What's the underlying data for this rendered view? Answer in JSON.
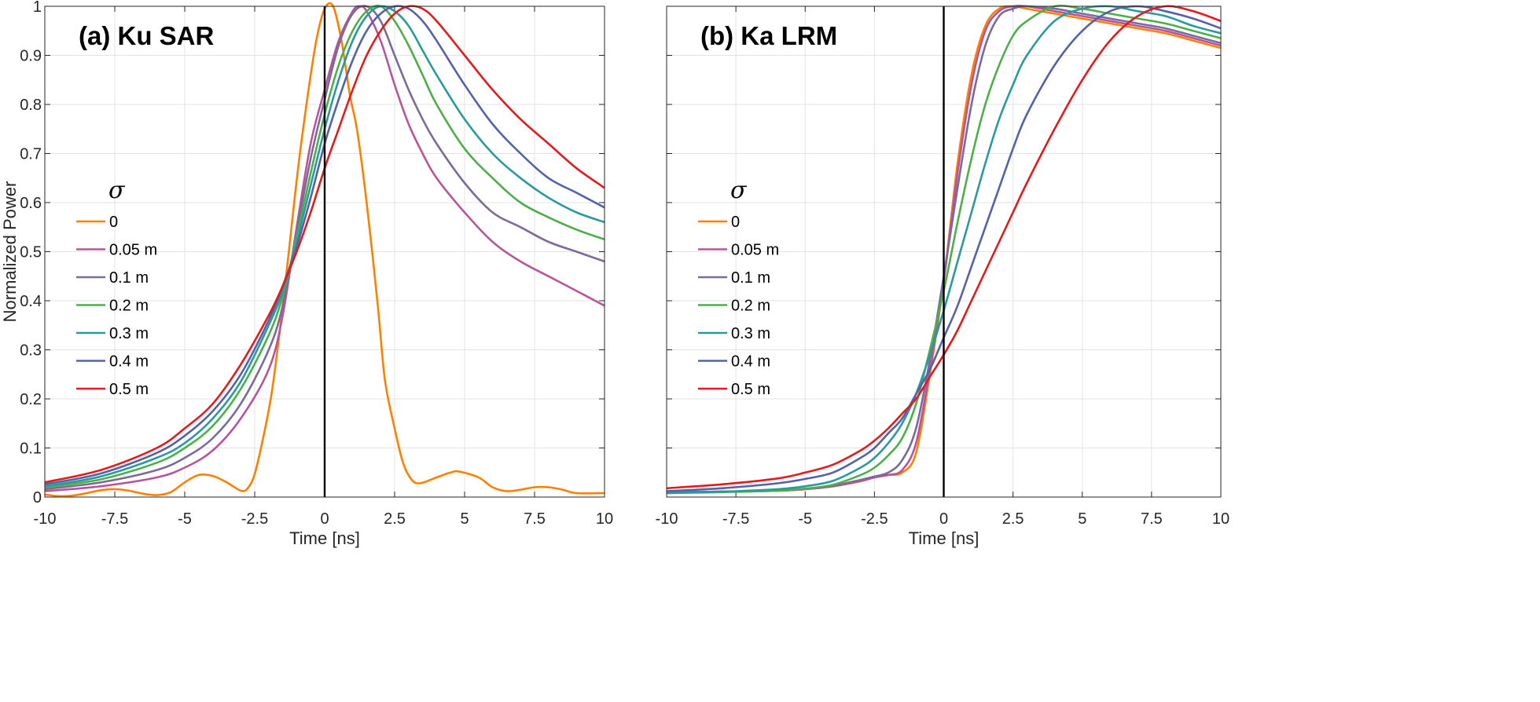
{
  "chart_data": [
    {
      "type": "line",
      "title": "(a) Ku SAR",
      "xlabel": "Time [ns]",
      "ylabel": "Normalized Power",
      "xlim": [
        -10,
        10
      ],
      "ylim": [
        0,
        1
      ],
      "xticks": [
        "-10",
        "-7.5",
        "-5",
        "-2.5",
        "0",
        "2.5",
        "5",
        "7.5",
        "10"
      ],
      "yticks": [
        "0",
        "0.1",
        "0.2",
        "0.3",
        "0.4",
        "0.5",
        "0.6",
        "0.7",
        "0.8",
        "0.9",
        "1"
      ],
      "show_ytick_labels": true,
      "grid": true,
      "vertical_line_at": 0,
      "legend_title": "σ",
      "legend_placement": "left",
      "series": [
        {
          "name": "0",
          "color": "#FF8000",
          "x": [
            -10,
            -9.5,
            -9,
            -8.5,
            -8,
            -7.5,
            -7,
            -6.5,
            -6,
            -5.5,
            -5,
            -4.5,
            -4,
            -3.5,
            -3,
            -2.75,
            -2.5,
            -2.2,
            -1.9,
            -1.6,
            -1.3,
            -0.95,
            -0.6,
            -0.3,
            0,
            0.3,
            0.6,
            0.9,
            1.18,
            1.54,
            1.9,
            2.15,
            2.5,
            2.8,
            3.1,
            3.4,
            4,
            4.5,
            4.8,
            5.5,
            6,
            6.5,
            7,
            7.5,
            8,
            8.5,
            9,
            10
          ],
          "y": [
            0.005,
            0.002,
            0.003,
            0.008,
            0.014,
            0.016,
            0.013,
            0.007,
            0.004,
            0.01,
            0.03,
            0.045,
            0.043,
            0.03,
            0.013,
            0.018,
            0.047,
            0.12,
            0.21,
            0.34,
            0.49,
            0.67,
            0.82,
            0.93,
            0.995,
            1.0,
            0.93,
            0.82,
            0.74,
            0.58,
            0.39,
            0.24,
            0.14,
            0.07,
            0.036,
            0.028,
            0.04,
            0.05,
            0.052,
            0.04,
            0.02,
            0.012,
            0.015,
            0.02,
            0.02,
            0.015,
            0.008,
            0.008
          ]
        },
        {
          "name": "0.05 m",
          "color": "#B8559A",
          "x": [
            -10,
            -8,
            -6,
            -5,
            -4,
            -3,
            -2,
            -1.5,
            -1,
            -0.5,
            0,
            0.5,
            1,
            1.25,
            1.5,
            2,
            2.5,
            3,
            3.5,
            4,
            5,
            6,
            7,
            8,
            9,
            10
          ],
          "y": [
            0.012,
            0.022,
            0.04,
            0.06,
            0.095,
            0.16,
            0.26,
            0.37,
            0.55,
            0.72,
            0.83,
            0.93,
            0.99,
            1.0,
            0.99,
            0.93,
            0.84,
            0.76,
            0.7,
            0.65,
            0.58,
            0.52,
            0.48,
            0.45,
            0.42,
            0.39
          ]
        },
        {
          "name": "0.1 m",
          "color": "#7B6A9A",
          "x": [
            -10,
            -8,
            -6,
            -5,
            -4,
            -3,
            -2,
            -1.5,
            -1,
            -0.5,
            0,
            0.5,
            1,
            1.5,
            2,
            2.5,
            3,
            3.5,
            4,
            5,
            6,
            7,
            8,
            9,
            10
          ],
          "y": [
            0.016,
            0.03,
            0.055,
            0.08,
            0.12,
            0.19,
            0.3,
            0.39,
            0.54,
            0.69,
            0.81,
            0.92,
            0.985,
            1.0,
            0.97,
            0.9,
            0.83,
            0.77,
            0.72,
            0.64,
            0.58,
            0.55,
            0.52,
            0.5,
            0.48
          ]
        },
        {
          "name": "0.2 m",
          "color": "#4DAF4A",
          "x": [
            -10,
            -8,
            -6,
            -5,
            -4,
            -3,
            -2,
            -1.5,
            -1,
            -0.5,
            0,
            0.5,
            1,
            1.5,
            2,
            2.5,
            3,
            3.5,
            4,
            5,
            6,
            7,
            8,
            9,
            10
          ],
          "y": [
            0.02,
            0.036,
            0.07,
            0.1,
            0.145,
            0.22,
            0.33,
            0.41,
            0.53,
            0.66,
            0.78,
            0.88,
            0.95,
            0.99,
            1.0,
            0.97,
            0.92,
            0.86,
            0.8,
            0.71,
            0.65,
            0.6,
            0.57,
            0.545,
            0.525
          ]
        },
        {
          "name": "0.3 m",
          "color": "#2A9A9E",
          "x": [
            -10,
            -8,
            -6,
            -5,
            -4,
            -3,
            -2,
            -1.5,
            -1,
            -0.5,
            0,
            0.5,
            1,
            1.5,
            2,
            2.5,
            3,
            3.5,
            4,
            5,
            6,
            7,
            8,
            9,
            10
          ],
          "y": [
            0.022,
            0.042,
            0.08,
            0.11,
            0.16,
            0.235,
            0.35,
            0.42,
            0.52,
            0.635,
            0.75,
            0.85,
            0.93,
            0.98,
            1.0,
            0.99,
            0.96,
            0.91,
            0.86,
            0.77,
            0.7,
            0.65,
            0.61,
            0.58,
            0.56
          ]
        },
        {
          "name": "0.4 m",
          "color": "#5462A8",
          "x": [
            -10,
            -8,
            -6,
            -5,
            -4,
            -3,
            -2,
            -1.5,
            -1,
            -0.5,
            0,
            0.5,
            1,
            1.5,
            2,
            2.5,
            3,
            3.5,
            4,
            5,
            6,
            7,
            8,
            9,
            10
          ],
          "y": [
            0.026,
            0.048,
            0.09,
            0.125,
            0.175,
            0.25,
            0.36,
            0.43,
            0.51,
            0.61,
            0.72,
            0.81,
            0.89,
            0.95,
            0.985,
            1.0,
            0.995,
            0.97,
            0.93,
            0.84,
            0.76,
            0.7,
            0.65,
            0.62,
            0.59
          ]
        },
        {
          "name": "0.5 m",
          "color": "#E41A1C",
          "x": [
            -10,
            -8,
            -6,
            -5,
            -4,
            -3,
            -2,
            -1.5,
            -1,
            -0.5,
            0,
            0.5,
            1,
            1.5,
            2,
            2.5,
            3,
            3.5,
            4,
            5,
            6,
            7,
            8,
            9,
            10
          ],
          "y": [
            0.03,
            0.055,
            0.1,
            0.14,
            0.19,
            0.27,
            0.37,
            0.43,
            0.5,
            0.58,
            0.67,
            0.75,
            0.83,
            0.9,
            0.95,
            0.985,
            1.0,
            0.995,
            0.97,
            0.9,
            0.83,
            0.77,
            0.72,
            0.67,
            0.63
          ]
        }
      ]
    },
    {
      "type": "line",
      "title": "(b) Ka LRM",
      "xlabel": "Time [ns]",
      "ylabel": "",
      "xlim": [
        -10,
        10
      ],
      "ylim": [
        0,
        1
      ],
      "xticks": [
        "-10",
        "-7.5",
        "-5",
        "-2.5",
        "0",
        "2.5",
        "5",
        "7.5",
        "10"
      ],
      "yticks": [
        "0",
        "0.1",
        "0.2",
        "0.3",
        "0.4",
        "0.5",
        "0.6",
        "0.7",
        "0.8",
        "0.9",
        "1"
      ],
      "show_ytick_labels": false,
      "grid": true,
      "vertical_line_at": 0,
      "legend_title": "σ",
      "legend_placement": "left",
      "series": [
        {
          "name": "0",
          "color": "#FF8000",
          "x": [
            -10,
            -8,
            -6,
            -5,
            -4,
            -3,
            -2.5,
            -2,
            -1.5,
            -1,
            -0.5,
            0,
            0.5,
            1,
            1.5,
            2,
            2.5,
            3,
            4,
            5,
            6,
            7,
            8,
            9,
            10
          ],
          "y": [
            0.01,
            0.011,
            0.013,
            0.016,
            0.022,
            0.032,
            0.04,
            0.045,
            0.05,
            0.09,
            0.25,
            0.44,
            0.68,
            0.86,
            0.96,
            0.995,
            1.0,
            0.995,
            0.985,
            0.975,
            0.965,
            0.955,
            0.945,
            0.93,
            0.915
          ]
        },
        {
          "name": "0.05 m",
          "color": "#B8559A",
          "x": [
            -10,
            -8,
            -6,
            -5,
            -4,
            -3,
            -2.5,
            -2,
            -1.5,
            -1,
            -0.5,
            0,
            0.5,
            1,
            1.5,
            2,
            2.5,
            3,
            4,
            5,
            6,
            7,
            8,
            9,
            10
          ],
          "y": [
            0.01,
            0.011,
            0.013,
            0.016,
            0.022,
            0.033,
            0.04,
            0.045,
            0.055,
            0.11,
            0.26,
            0.44,
            0.66,
            0.84,
            0.95,
            0.99,
            1.0,
            1.0,
            0.99,
            0.98,
            0.97,
            0.96,
            0.95,
            0.935,
            0.92
          ]
        },
        {
          "name": "0.1 m",
          "color": "#7B6A9A",
          "x": [
            -10,
            -8,
            -6,
            -5,
            -4,
            -3,
            -2.5,
            -2,
            -1.5,
            -1,
            -0.5,
            0,
            0.5,
            1,
            1.5,
            2,
            2.5,
            3,
            4,
            5,
            6,
            7,
            8,
            9,
            10
          ],
          "y": [
            0.01,
            0.011,
            0.013,
            0.017,
            0.023,
            0.035,
            0.042,
            0.05,
            0.075,
            0.14,
            0.28,
            0.45,
            0.63,
            0.8,
            0.92,
            0.98,
            0.995,
            1.0,
            0.995,
            0.985,
            0.975,
            0.965,
            0.955,
            0.94,
            0.925
          ]
        },
        {
          "name": "0.2 m",
          "color": "#4DAF4A",
          "x": [
            -10,
            -8,
            -6,
            -5,
            -4,
            -3,
            -2.5,
            -2,
            -1.5,
            -1,
            -0.5,
            0,
            0.5,
            1,
            1.5,
            2,
            2.5,
            3,
            4,
            5,
            6,
            7,
            8,
            9,
            10
          ],
          "y": [
            0.008,
            0.01,
            0.013,
            0.017,
            0.025,
            0.045,
            0.06,
            0.085,
            0.12,
            0.19,
            0.3,
            0.42,
            0.56,
            0.69,
            0.8,
            0.88,
            0.94,
            0.97,
            1.0,
            0.995,
            0.985,
            0.975,
            0.965,
            0.95,
            0.935
          ]
        },
        {
          "name": "0.3 m",
          "color": "#2A9A9E",
          "x": [
            -10,
            -8,
            -6,
            -5,
            -4,
            -3,
            -2.5,
            -2,
            -1.5,
            -1,
            -0.5,
            0,
            0.5,
            1,
            1.5,
            2,
            2.5,
            3,
            4,
            5,
            6,
            7,
            8,
            9,
            10
          ],
          "y": [
            0.008,
            0.011,
            0.016,
            0.022,
            0.033,
            0.06,
            0.08,
            0.11,
            0.15,
            0.21,
            0.29,
            0.38,
            0.48,
            0.58,
            0.68,
            0.77,
            0.84,
            0.9,
            0.97,
            0.995,
            1.0,
            0.99,
            0.98,
            0.96,
            0.945
          ]
        },
        {
          "name": "0.4 m",
          "color": "#5462A8",
          "x": [
            -10,
            -8,
            -6,
            -5,
            -4,
            -3,
            -2.5,
            -2,
            -1.5,
            -1,
            -0.5,
            0,
            0.5,
            1,
            1.5,
            2,
            2.5,
            3,
            4,
            5,
            6,
            7,
            8,
            9,
            10
          ],
          "y": [
            0.012,
            0.018,
            0.028,
            0.037,
            0.05,
            0.08,
            0.1,
            0.13,
            0.16,
            0.21,
            0.26,
            0.325,
            0.39,
            0.47,
            0.55,
            0.63,
            0.71,
            0.78,
            0.88,
            0.95,
            0.99,
            1.0,
            0.99,
            0.975,
            0.955
          ]
        },
        {
          "name": "0.5 m",
          "color": "#E41A1C",
          "x": [
            -10,
            -8,
            -6,
            -5,
            -4,
            -3,
            -2.5,
            -2,
            -1.5,
            -1,
            -0.5,
            0,
            0.5,
            1,
            1.5,
            2,
            2.5,
            3,
            4,
            5,
            6,
            7,
            8,
            9,
            10
          ],
          "y": [
            0.018,
            0.026,
            0.038,
            0.05,
            0.066,
            0.095,
            0.115,
            0.14,
            0.17,
            0.2,
            0.245,
            0.29,
            0.34,
            0.4,
            0.46,
            0.52,
            0.58,
            0.64,
            0.75,
            0.85,
            0.93,
            0.98,
            1.0,
            0.99,
            0.97
          ]
        }
      ]
    }
  ]
}
